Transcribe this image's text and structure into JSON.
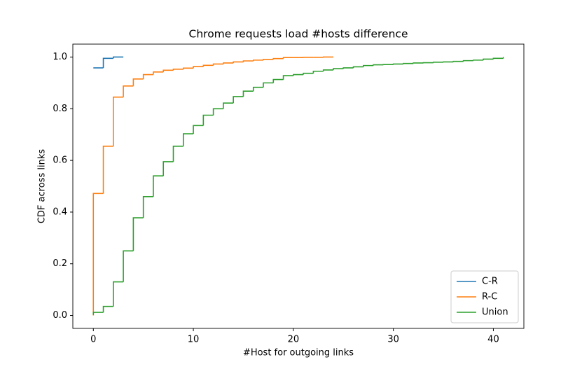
{
  "chart_data": {
    "type": "step",
    "title": "Chrome requests load #hosts difference",
    "xlabel": "#Host for outgoing links",
    "ylabel": "CDF across links",
    "xlim": [
      -2.05,
      43.05
    ],
    "ylim": [
      -0.05,
      1.05
    ],
    "xticks": [
      0,
      10,
      20,
      30,
      40
    ],
    "yticks": [
      {
        "value": 0,
        "label": "0.0"
      },
      {
        "value": 0.2,
        "label": "0.2"
      },
      {
        "value": 0.4,
        "label": "0.4"
      },
      {
        "value": 0.6,
        "label": "0.6"
      },
      {
        "value": 0.8,
        "label": "0.8"
      },
      {
        "value": 1,
        "label": "1.0"
      }
    ],
    "legend": "lower right",
    "series": [
      {
        "name": "C-R",
        "color": "#1f77b4",
        "x": [
          0,
          1,
          2,
          3
        ],
        "values": [
          0.958,
          0.995,
          1.0,
          1.0
        ]
      },
      {
        "name": "R-C",
        "color": "#ff7f0e",
        "x": [
          0,
          0,
          1,
          2,
          3,
          4,
          5,
          6,
          7,
          8,
          9,
          10,
          11,
          12,
          13,
          14,
          15,
          16,
          17,
          18,
          19,
          20,
          21,
          22,
          23,
          24
        ],
        "values": [
          0,
          0.472,
          0.655,
          0.845,
          0.888,
          0.915,
          0.932,
          0.942,
          0.949,
          0.953,
          0.957,
          0.963,
          0.968,
          0.973,
          0.977,
          0.981,
          0.985,
          0.988,
          0.991,
          0.994,
          0.998,
          0.998,
          0.999,
          0.999,
          1.0,
          1.0
        ]
      },
      {
        "name": "Union",
        "color": "#2ca02c",
        "x": [
          0,
          0,
          1,
          2,
          3,
          4,
          5,
          6,
          7,
          8,
          9,
          10,
          11,
          12,
          13,
          14,
          15,
          16,
          17,
          18,
          19,
          20,
          21,
          22,
          23,
          24,
          25,
          26,
          27,
          28,
          29,
          30,
          31,
          32,
          33,
          34,
          35,
          36,
          37,
          38,
          39,
          40,
          41
        ],
        "values": [
          0.003,
          0.012,
          0.035,
          0.13,
          0.25,
          0.378,
          0.46,
          0.54,
          0.595,
          0.655,
          0.703,
          0.735,
          0.775,
          0.8,
          0.822,
          0.847,
          0.868,
          0.883,
          0.9,
          0.913,
          0.928,
          0.932,
          0.937,
          0.945,
          0.95,
          0.955,
          0.958,
          0.962,
          0.967,
          0.97,
          0.971,
          0.973,
          0.975,
          0.977,
          0.978,
          0.98,
          0.981,
          0.983,
          0.986,
          0.988,
          0.992,
          0.995,
          1.0
        ]
      }
    ]
  }
}
